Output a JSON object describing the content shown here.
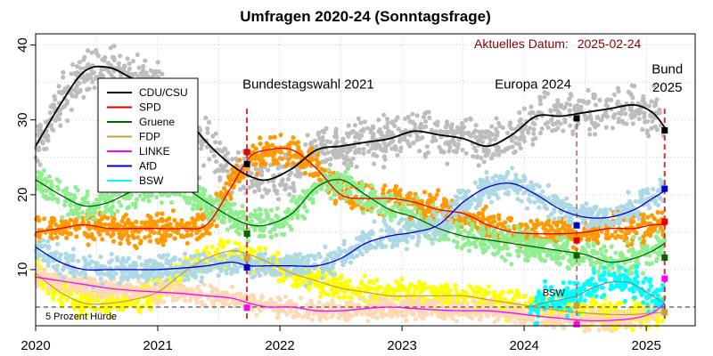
{
  "chart_data": {
    "type": "line",
    "title": "Umfragen 2020-24 (Sonntagsfrage)",
    "current_date_label": "Aktuelles Datum:",
    "current_date": "2025-02-24",
    "xlim": [
      2020.0,
      2025.4
    ],
    "ylim": [
      2.5,
      41.5
    ],
    "x_ticks": [
      {
        "value": 2020,
        "label": "2020"
      },
      {
        "value": 2021,
        "label": "2021"
      },
      {
        "value": 2022,
        "label": "2022"
      },
      {
        "value": 2023,
        "label": "2023"
      },
      {
        "value": 2024,
        "label": "2024"
      },
      {
        "value": 2025,
        "label": "2025"
      }
    ],
    "y_ticks": [
      {
        "value": 10,
        "label": "10"
      },
      {
        "value": 20,
        "label": "20"
      },
      {
        "value": 30,
        "label": "30"
      },
      {
        "value": 40,
        "label": "40"
      }
    ],
    "grid": true,
    "legend_position": "top-left",
    "threshold": {
      "value": 5,
      "label": "5 Prozent Hürde",
      "color": "#555555"
    },
    "events": [
      {
        "x": 2021.73,
        "label": "Bundestagswahl 2021",
        "color": "#cc3333"
      },
      {
        "x": 2024.43,
        "label": "Europa 2024",
        "color": "#b06060"
      },
      {
        "x": 2025.15,
        "label": "Bund",
        "label2": "2025",
        "color": "#cc3333"
      }
    ],
    "series": [
      {
        "name": "CDU/CSU",
        "color": "#000000",
        "poll_color": "#bdbdbd",
        "x": [
          2020.0,
          2020.2,
          2020.4,
          2020.6,
          2020.8,
          2021.0,
          2021.2,
          2021.4,
          2021.6,
          2021.75,
          2021.9,
          2022.1,
          2022.3,
          2022.5,
          2022.7,
          2022.9,
          2023.1,
          2023.3,
          2023.5,
          2023.7,
          2023.9,
          2024.1,
          2024.3,
          2024.5,
          2024.7,
          2024.9,
          2025.05,
          2025.15
        ],
        "y": [
          26.5,
          32,
          36.5,
          37,
          35.5,
          34.5,
          31,
          27,
          24,
          22.5,
          22,
          23.5,
          26,
          26.5,
          27,
          27.5,
          28.5,
          28,
          27.5,
          26.5,
          28,
          30.5,
          30.5,
          31,
          31.5,
          32,
          31,
          29
        ],
        "markers": [
          {
            "x": 2021.73,
            "y": 24.1
          },
          {
            "x": 2024.43,
            "y": 30.2
          },
          {
            "x": 2025.15,
            "y": 28.6
          }
        ],
        "poll_band": 2.2
      },
      {
        "name": "SPD",
        "color": "#e00000",
        "poll_color": "#ff9900",
        "x": [
          2020.0,
          2020.2,
          2020.4,
          2020.6,
          2020.8,
          2021.0,
          2021.2,
          2021.4,
          2021.6,
          2021.75,
          2021.9,
          2022.1,
          2022.3,
          2022.5,
          2022.7,
          2022.9,
          2023.1,
          2023.3,
          2023.5,
          2023.7,
          2023.9,
          2024.1,
          2024.3,
          2024.5,
          2024.7,
          2024.9,
          2025.05,
          2025.15
        ],
        "y": [
          15,
          15.5,
          16,
          15.5,
          15.5,
          15.5,
          15.5,
          16,
          21,
          25,
          26,
          26,
          23.5,
          20,
          19.5,
          19.5,
          19,
          18,
          17.5,
          16,
          15,
          14.8,
          14.8,
          15,
          15.5,
          15.5,
          16,
          16
        ],
        "markers": [
          {
            "x": 2021.73,
            "y": 25.7
          },
          {
            "x": 2024.43,
            "y": 13.9
          },
          {
            "x": 2025.15,
            "y": 16.4
          }
        ],
        "poll_band": 1.5
      },
      {
        "name": "Gruene",
        "color": "#006400",
        "poll_color": "#90ee90",
        "x": [
          2020.0,
          2020.2,
          2020.4,
          2020.6,
          2020.8,
          2021.0,
          2021.2,
          2021.4,
          2021.6,
          2021.75,
          2021.9,
          2022.1,
          2022.3,
          2022.5,
          2022.7,
          2022.9,
          2023.1,
          2023.3,
          2023.5,
          2023.7,
          2023.9,
          2024.1,
          2024.3,
          2024.5,
          2024.7,
          2024.9,
          2025.05,
          2025.15
        ],
        "y": [
          22,
          20,
          18.5,
          19,
          20.5,
          21,
          21,
          19,
          17,
          16,
          16,
          17.5,
          21,
          22,
          20,
          18,
          17,
          15.5,
          14.5,
          14,
          13.5,
          13,
          12.5,
          12,
          11,
          11.5,
          12.5,
          13.5
        ],
        "markers": [
          {
            "x": 2021.73,
            "y": 14.8
          },
          {
            "x": 2024.43,
            "y": 11.9
          },
          {
            "x": 2025.15,
            "y": 11.6
          }
        ],
        "poll_band": 1.6
      },
      {
        "name": "FDP",
        "color": "#cca033",
        "poll_color": "#ffff00",
        "x": [
          2020.0,
          2020.2,
          2020.4,
          2020.6,
          2020.8,
          2021.0,
          2021.2,
          2021.4,
          2021.6,
          2021.75,
          2021.9,
          2022.1,
          2022.3,
          2022.5,
          2022.7,
          2022.9,
          2023.1,
          2023.3,
          2023.5,
          2023.7,
          2023.9,
          2024.1,
          2024.3,
          2024.5,
          2024.7,
          2024.9,
          2025.05,
          2025.15
        ],
        "y": [
          9.5,
          7,
          5.5,
          5.5,
          6,
          7,
          9.5,
          11.5,
          12.5,
          12,
          11,
          9.5,
          8.5,
          7.5,
          7,
          6.5,
          6.5,
          6.5,
          6.5,
          6,
          5.5,
          5,
          4.5,
          4.2,
          4.0,
          4.0,
          4.2,
          4.3
        ],
        "markers": [
          {
            "x": 2021.73,
            "y": 11.5
          },
          {
            "x": 2024.43,
            "y": 5.2
          },
          {
            "x": 2025.15,
            "y": 4.3
          }
        ],
        "poll_band": 1.4
      },
      {
        "name": "LINKE",
        "color": "#ff00ff",
        "poll_color": "#ffd9b3",
        "x": [
          2020.0,
          2020.2,
          2020.4,
          2020.6,
          2020.8,
          2021.0,
          2021.2,
          2021.4,
          2021.6,
          2021.75,
          2021.9,
          2022.1,
          2022.3,
          2022.5,
          2022.7,
          2022.9,
          2023.1,
          2023.3,
          2023.5,
          2023.7,
          2023.9,
          2024.1,
          2024.3,
          2024.5,
          2024.7,
          2024.9,
          2025.05,
          2025.15
        ],
        "y": [
          9,
          8.5,
          8,
          7.5,
          7.2,
          7,
          6.8,
          6.5,
          6.2,
          5.5,
          5,
          5,
          4.5,
          4.5,
          4.8,
          5,
          4.8,
          4.6,
          4.5,
          4.5,
          4.2,
          3.8,
          3.5,
          3.2,
          3.2,
          3.5,
          4.2,
          5.5
        ],
        "markers": [
          {
            "x": 2021.73,
            "y": 4.9
          },
          {
            "x": 2024.43,
            "y": 2.7
          },
          {
            "x": 2025.15,
            "y": 8.8
          }
        ],
        "poll_band": 1.0
      },
      {
        "name": "AfD",
        "color": "#0000cc",
        "poll_color": "#add8e6",
        "x": [
          2020.0,
          2020.2,
          2020.4,
          2020.6,
          2020.8,
          2021.0,
          2021.2,
          2021.4,
          2021.6,
          2021.75,
          2021.9,
          2022.1,
          2022.3,
          2022.5,
          2022.7,
          2022.9,
          2023.1,
          2023.3,
          2023.5,
          2023.7,
          2023.9,
          2024.1,
          2024.3,
          2024.5,
          2024.7,
          2024.9,
          2025.05,
          2025.15
        ],
        "y": [
          13,
          11,
          10,
          10,
          10,
          10,
          10.2,
          10.5,
          11,
          10.5,
          10.5,
          10.5,
          10.5,
          11.5,
          13.5,
          14.5,
          15,
          16,
          19,
          21,
          21.5,
          20,
          18,
          17,
          17,
          18,
          19.5,
          20.5
        ],
        "markers": [
          {
            "x": 2021.73,
            "y": 10.3
          },
          {
            "x": 2024.43,
            "y": 15.9
          },
          {
            "x": 2025.15,
            "y": 20.8
          }
        ],
        "poll_band": 1.4
      },
      {
        "name": "BSW",
        "color": "#00ffff",
        "poll_color": "#00ffff",
        "x": [
          2024.05,
          2024.15,
          2024.3,
          2024.43,
          2024.55,
          2024.7,
          2024.85,
          2024.95,
          2025.05,
          2025.15
        ],
        "y": [
          5,
          5.5,
          6,
          6.5,
          7.5,
          8.3,
          8.3,
          7.5,
          6.5,
          5.5
        ],
        "markers": [],
        "poll_band": 1.6,
        "inline_label": "BSW"
      }
    ]
  }
}
